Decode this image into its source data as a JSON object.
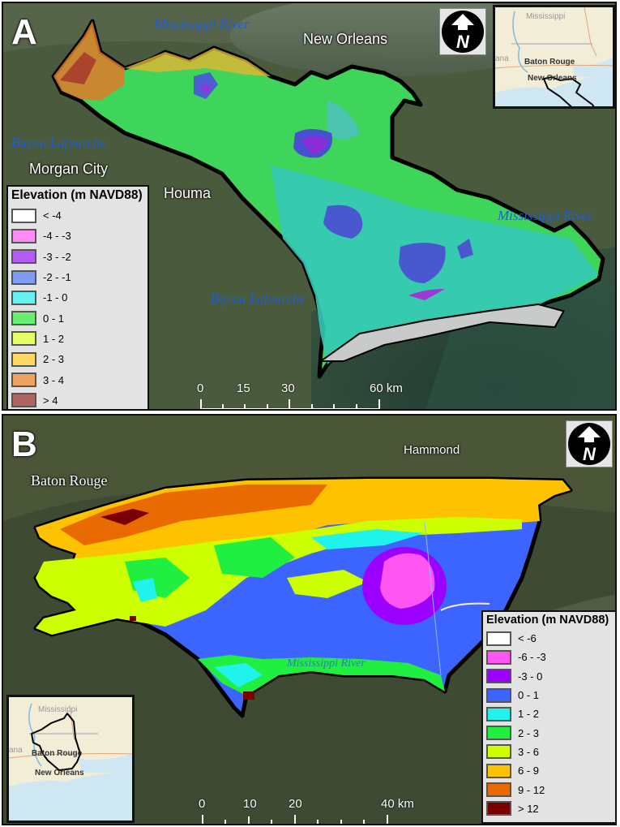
{
  "figure": {
    "panels": [
      {
        "id": "A",
        "letter": "A",
        "place_labels": {
          "new_orleans": "New Orleans",
          "morgan_city": "Morgan City",
          "houma": "Houma"
        },
        "river_labels": {
          "mississippi_top": "Mississippi River",
          "mississippi_right": "Mississippi River",
          "bayou_left": "Bayou Lafourche",
          "bayou_bottom": "Bayou Lafourche"
        },
        "legend": {
          "title": "Elevation (m NAVD88)",
          "items": [
            {
              "label": "< -4",
              "color": "#ffffff"
            },
            {
              "label": "-4 - -3",
              "color": "#ff8cf5"
            },
            {
              "label": "-3 - -2",
              "color": "#b25cf5"
            },
            {
              "label": "-2 - -1",
              "color": "#7f9cf2"
            },
            {
              "label": "-1 - 0",
              "color": "#66f2f0"
            },
            {
              "label": "0 - 1",
              "color": "#66ee70"
            },
            {
              "label": "1 - 2",
              "color": "#e4ff66"
            },
            {
              "label": "2 - 3",
              "color": "#ffd966"
            },
            {
              "label": "3 - 4",
              "color": "#eea262"
            },
            {
              "label": "> 4",
              "color": "#b06565"
            }
          ]
        },
        "scale_bar": {
          "ticks": [
            "0",
            "15",
            "30",
            "60 km"
          ],
          "unit": "km"
        },
        "inset": {
          "labels": {
            "state_north": "Mississippi",
            "state_west": "ana",
            "city1": "Baton Rouge",
            "city2": "New Orleans"
          }
        },
        "north_arrow": {
          "glyph": "N",
          "icon": "north-arrow-icon"
        }
      },
      {
        "id": "B",
        "letter": "B",
        "place_labels": {
          "baton_rouge": "Baton Rouge",
          "hammond": "Hammond"
        },
        "river_labels": {
          "mississippi_center": "Mississippi River"
        },
        "legend": {
          "title": "Elevation (m NAVD88)",
          "items": [
            {
              "label": "< -6",
              "color": "#ffffff"
            },
            {
              "label": "-6 - -3",
              "color": "#ff55f2"
            },
            {
              "label": "-3 - 0",
              "color": "#9b00ff"
            },
            {
              "label": "0 - 1",
              "color": "#3c64ff"
            },
            {
              "label": "1 - 2",
              "color": "#20f2ec"
            },
            {
              "label": "2 - 3",
              "color": "#20ee40"
            },
            {
              "label": "3 - 6",
              "color": "#ccff00"
            },
            {
              "label": "6 - 9",
              "color": "#ffc200"
            },
            {
              "label": "9 - 12",
              "color": "#e86a00"
            },
            {
              "label": "> 12",
              "color": "#7a0000"
            }
          ]
        },
        "scale_bar": {
          "ticks": [
            "0",
            "10",
            "20",
            "40 km"
          ],
          "unit": "km"
        },
        "inset": {
          "labels": {
            "state_north": "Mississippi",
            "state_west": "ana",
            "city1": "Baton Rouge",
            "city2": "New Orleans"
          }
        },
        "north_arrow": {
          "glyph": "N",
          "icon": "north-arrow-icon"
        }
      }
    ]
  }
}
